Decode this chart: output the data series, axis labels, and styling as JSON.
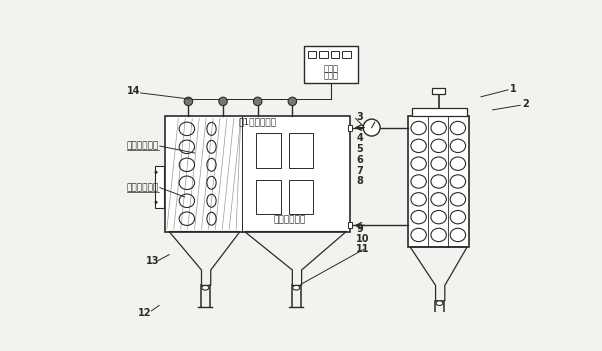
{
  "bg_color": "#f2f2ee",
  "line_color": "#2a2a2a",
  "text_clean_air": "兀1化空气出口",
  "text_dusty_air": "含尘气体入口",
  "text_filter_clean": "滤袋清灰状态",
  "text_filter_filter": "滤袋过滤状态",
  "text_controller_line1": "电器控",
  "text_controller_line2": "制装置",
  "num_labels": [
    "1",
    "2",
    "3",
    "4",
    "5",
    "6",
    "7",
    "8",
    "9",
    "10",
    "11",
    "12",
    "13",
    "14"
  ]
}
